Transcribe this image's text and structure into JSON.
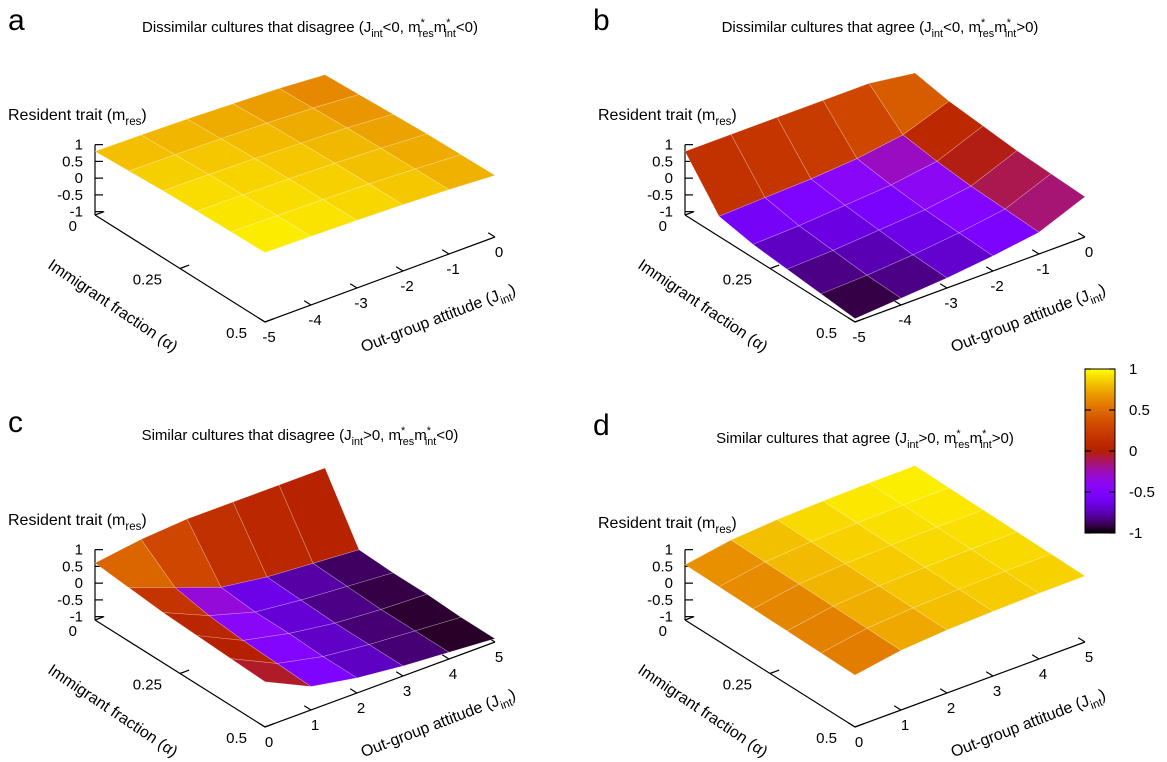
{
  "chart_data": [
    {
      "type": "surface",
      "letter": "a",
      "title": [
        {
          "text": "Dissimilar cultures that disagree (J"
        },
        {
          "text": "int",
          "script": "sub"
        },
        {
          "text": "<0, m"
        },
        {
          "text": "*",
          "script": "sup"
        },
        {
          "text": "res",
          "script": "sub"
        },
        {
          "text": "m"
        },
        {
          "text": "*",
          "script": "sup"
        },
        {
          "text": "int",
          "script": "sub"
        },
        {
          "text": "<0)"
        }
      ],
      "zlabel": [
        {
          "text": "Resident trait (m"
        },
        {
          "text": "res",
          "script": "sub"
        },
        {
          "text": ")"
        }
      ],
      "xlabel": "Immigrant fraction (α)",
      "ylabel": [
        {
          "text": "Out-group attitude (J"
        },
        {
          "text": "int",
          "script": "sub"
        },
        {
          "text": ")"
        }
      ],
      "xlim": [
        0,
        0.5
      ],
      "xticks": [
        0,
        0.25,
        0.5
      ],
      "ylim": [
        -5,
        0
      ],
      "yticks": [
        -5,
        -4,
        -3,
        -2,
        -1,
        0
      ],
      "zlim": [
        -1,
        1
      ],
      "zticks": [
        1,
        0.5,
        0,
        -0.5,
        -1
      ],
      "x": [
        0,
        0.1,
        0.2,
        0.3,
        0.4,
        0.5
      ],
      "y": [
        -5,
        -4,
        -3,
        -2,
        -1,
        0
      ],
      "z": [
        [
          0.8,
          0.78,
          0.75,
          0.7,
          0.65,
          0.55
        ],
        [
          0.85,
          0.83,
          0.8,
          0.76,
          0.7,
          0.6
        ],
        [
          0.9,
          0.88,
          0.85,
          0.8,
          0.75,
          0.65
        ],
        [
          0.93,
          0.91,
          0.88,
          0.84,
          0.78,
          0.7
        ],
        [
          0.95,
          0.93,
          0.9,
          0.86,
          0.8,
          0.72
        ],
        [
          0.97,
          0.95,
          0.92,
          0.88,
          0.82,
          0.74
        ]
      ]
    },
    {
      "type": "surface",
      "letter": "b",
      "title": [
        {
          "text": "Dissimilar cultures that agree (J"
        },
        {
          "text": "int",
          "script": "sub"
        },
        {
          "text": "<0, m"
        },
        {
          "text": "*",
          "script": "sup"
        },
        {
          "text": "res",
          "script": "sub"
        },
        {
          "text": "m"
        },
        {
          "text": "*",
          "script": "sup"
        },
        {
          "text": "int",
          "script": "sub"
        },
        {
          "text": ">0)"
        }
      ],
      "zlabel": [
        {
          "text": "Resident trait (m"
        },
        {
          "text": "res",
          "script": "sub"
        },
        {
          "text": ")"
        }
      ],
      "xlabel": "Immigrant fraction (α)",
      "ylabel": [
        {
          "text": "Out-group attitude (J"
        },
        {
          "text": "int",
          "script": "sub"
        },
        {
          "text": ")"
        }
      ],
      "xlim": [
        0,
        0.5
      ],
      "xticks": [
        0,
        0.25,
        0.5
      ],
      "ylim": [
        -5,
        0
      ],
      "yticks": [
        -5,
        -4,
        -3,
        -2,
        -1,
        0
      ],
      "zlim": [
        -1,
        1
      ],
      "zticks": [
        1,
        0.5,
        0,
        -0.5,
        -1
      ],
      "x": [
        0,
        0.1,
        0.2,
        0.3,
        0.4,
        0.5
      ],
      "y": [
        -5,
        -4,
        -3,
        -2,
        -1,
        0
      ],
      "z": [
        [
          0.8,
          0.8,
          0.8,
          0.8,
          0.8,
          0.6
        ],
        [
          -0.5,
          -0.45,
          -0.4,
          -0.3,
          -0.1,
          0.4
        ],
        [
          -0.7,
          -0.65,
          -0.55,
          -0.45,
          -0.25,
          0.3
        ],
        [
          -0.8,
          -0.75,
          -0.65,
          -0.55,
          -0.35,
          0.2
        ],
        [
          -0.9,
          -0.85,
          -0.75,
          -0.6,
          -0.4,
          0.15
        ],
        [
          -1,
          -0.9,
          -0.8,
          -0.65,
          -0.45,
          0.1
        ]
      ]
    },
    {
      "type": "surface",
      "letter": "c",
      "title": [
        {
          "text": "Similar cultures that disagree (J"
        },
        {
          "text": "int",
          "script": "sub"
        },
        {
          "text": ">0, m"
        },
        {
          "text": "*",
          "script": "sup"
        },
        {
          "text": "res",
          "script": "sub"
        },
        {
          "text": "m"
        },
        {
          "text": "*",
          "script": "sup"
        },
        {
          "text": "int",
          "script": "sub"
        },
        {
          "text": "<0)"
        }
      ],
      "zlabel": [
        {
          "text": "Resident trait (m"
        },
        {
          "text": "res",
          "script": "sub"
        },
        {
          "text": ")"
        }
      ],
      "xlabel": "Immigrant fraction (α)",
      "ylabel": [
        {
          "text": "Out-group attitude (J"
        },
        {
          "text": "int",
          "script": "sub"
        },
        {
          "text": ")"
        }
      ],
      "xlim": [
        0,
        0.5
      ],
      "xticks": [
        0,
        0.25,
        0.5
      ],
      "ylim": [
        0,
        5
      ],
      "yticks": [
        0,
        1,
        2,
        3,
        4,
        5
      ],
      "zlim": [
        -1,
        1
      ],
      "zticks": [
        1,
        0.5,
        0,
        -0.5,
        -1
      ],
      "x": [
        0,
        0.1,
        0.2,
        0.3,
        0.4,
        0.5
      ],
      "y": [
        0,
        1,
        2,
        3,
        4,
        5
      ],
      "z": [
        [
          0.6,
          0.8,
          0.9,
          0.9,
          0.9,
          0.9
        ],
        [
          0.5,
          0.0,
          -0.5,
          -0.7,
          -0.8,
          -0.9
        ],
        [
          0.4,
          -0.2,
          -0.6,
          -0.75,
          -0.85,
          -0.95
        ],
        [
          0.35,
          -0.3,
          -0.6,
          -0.8,
          -0.9,
          -0.95
        ],
        [
          0.3,
          -0.35,
          -0.65,
          -0.8,
          -0.9,
          -1
        ],
        [
          0.25,
          -0.4,
          -0.65,
          -0.8,
          -0.9,
          -1
        ]
      ]
    },
    {
      "type": "surface",
      "letter": "d",
      "title": [
        {
          "text": "Similar cultures that agree (J"
        },
        {
          "text": "int",
          "script": "sub"
        },
        {
          "text": ">0, m"
        },
        {
          "text": "*",
          "script": "sup"
        },
        {
          "text": "res",
          "script": "sub"
        },
        {
          "text": "m"
        },
        {
          "text": "*",
          "script": "sup"
        },
        {
          "text": "int",
          "script": "sub"
        },
        {
          "text": ">0)"
        }
      ],
      "zlabel": [
        {
          "text": "Resident trait (m"
        },
        {
          "text": "res",
          "script": "sub"
        },
        {
          "text": ")"
        }
      ],
      "xlabel": "Immigrant fraction (α)",
      "ylabel": [
        {
          "text": "Out-group attitude (J"
        },
        {
          "text": "int",
          "script": "sub"
        },
        {
          "text": ")"
        }
      ],
      "xlim": [
        0,
        0.5
      ],
      "xticks": [
        0,
        0.25,
        0.5
      ],
      "ylim": [
        0,
        5
      ],
      "yticks": [
        0,
        1,
        2,
        3,
        4,
        5
      ],
      "zlim": [
        -1,
        1
      ],
      "zticks": [
        1,
        0.5,
        0,
        -0.5,
        -1
      ],
      "x": [
        0,
        0.1,
        0.2,
        0.3,
        0.4,
        0.5
      ],
      "y": [
        0,
        1,
        2,
        3,
        4,
        5
      ],
      "z": [
        [
          0.55,
          0.78,
          0.88,
          0.93,
          0.96,
          0.97
        ],
        [
          0.53,
          0.76,
          0.86,
          0.91,
          0.94,
          0.95
        ],
        [
          0.51,
          0.74,
          0.84,
          0.89,
          0.92,
          0.93
        ],
        [
          0.49,
          0.72,
          0.82,
          0.87,
          0.9,
          0.91
        ],
        [
          0.47,
          0.7,
          0.8,
          0.85,
          0.88,
          0.89
        ],
        [
          0.45,
          0.68,
          0.78,
          0.83,
          0.86,
          0.87
        ]
      ]
    }
  ],
  "colorbar": {
    "lim": [
      -1,
      1
    ],
    "ticks": [
      1,
      0.5,
      0,
      -0.5,
      -1
    ]
  }
}
